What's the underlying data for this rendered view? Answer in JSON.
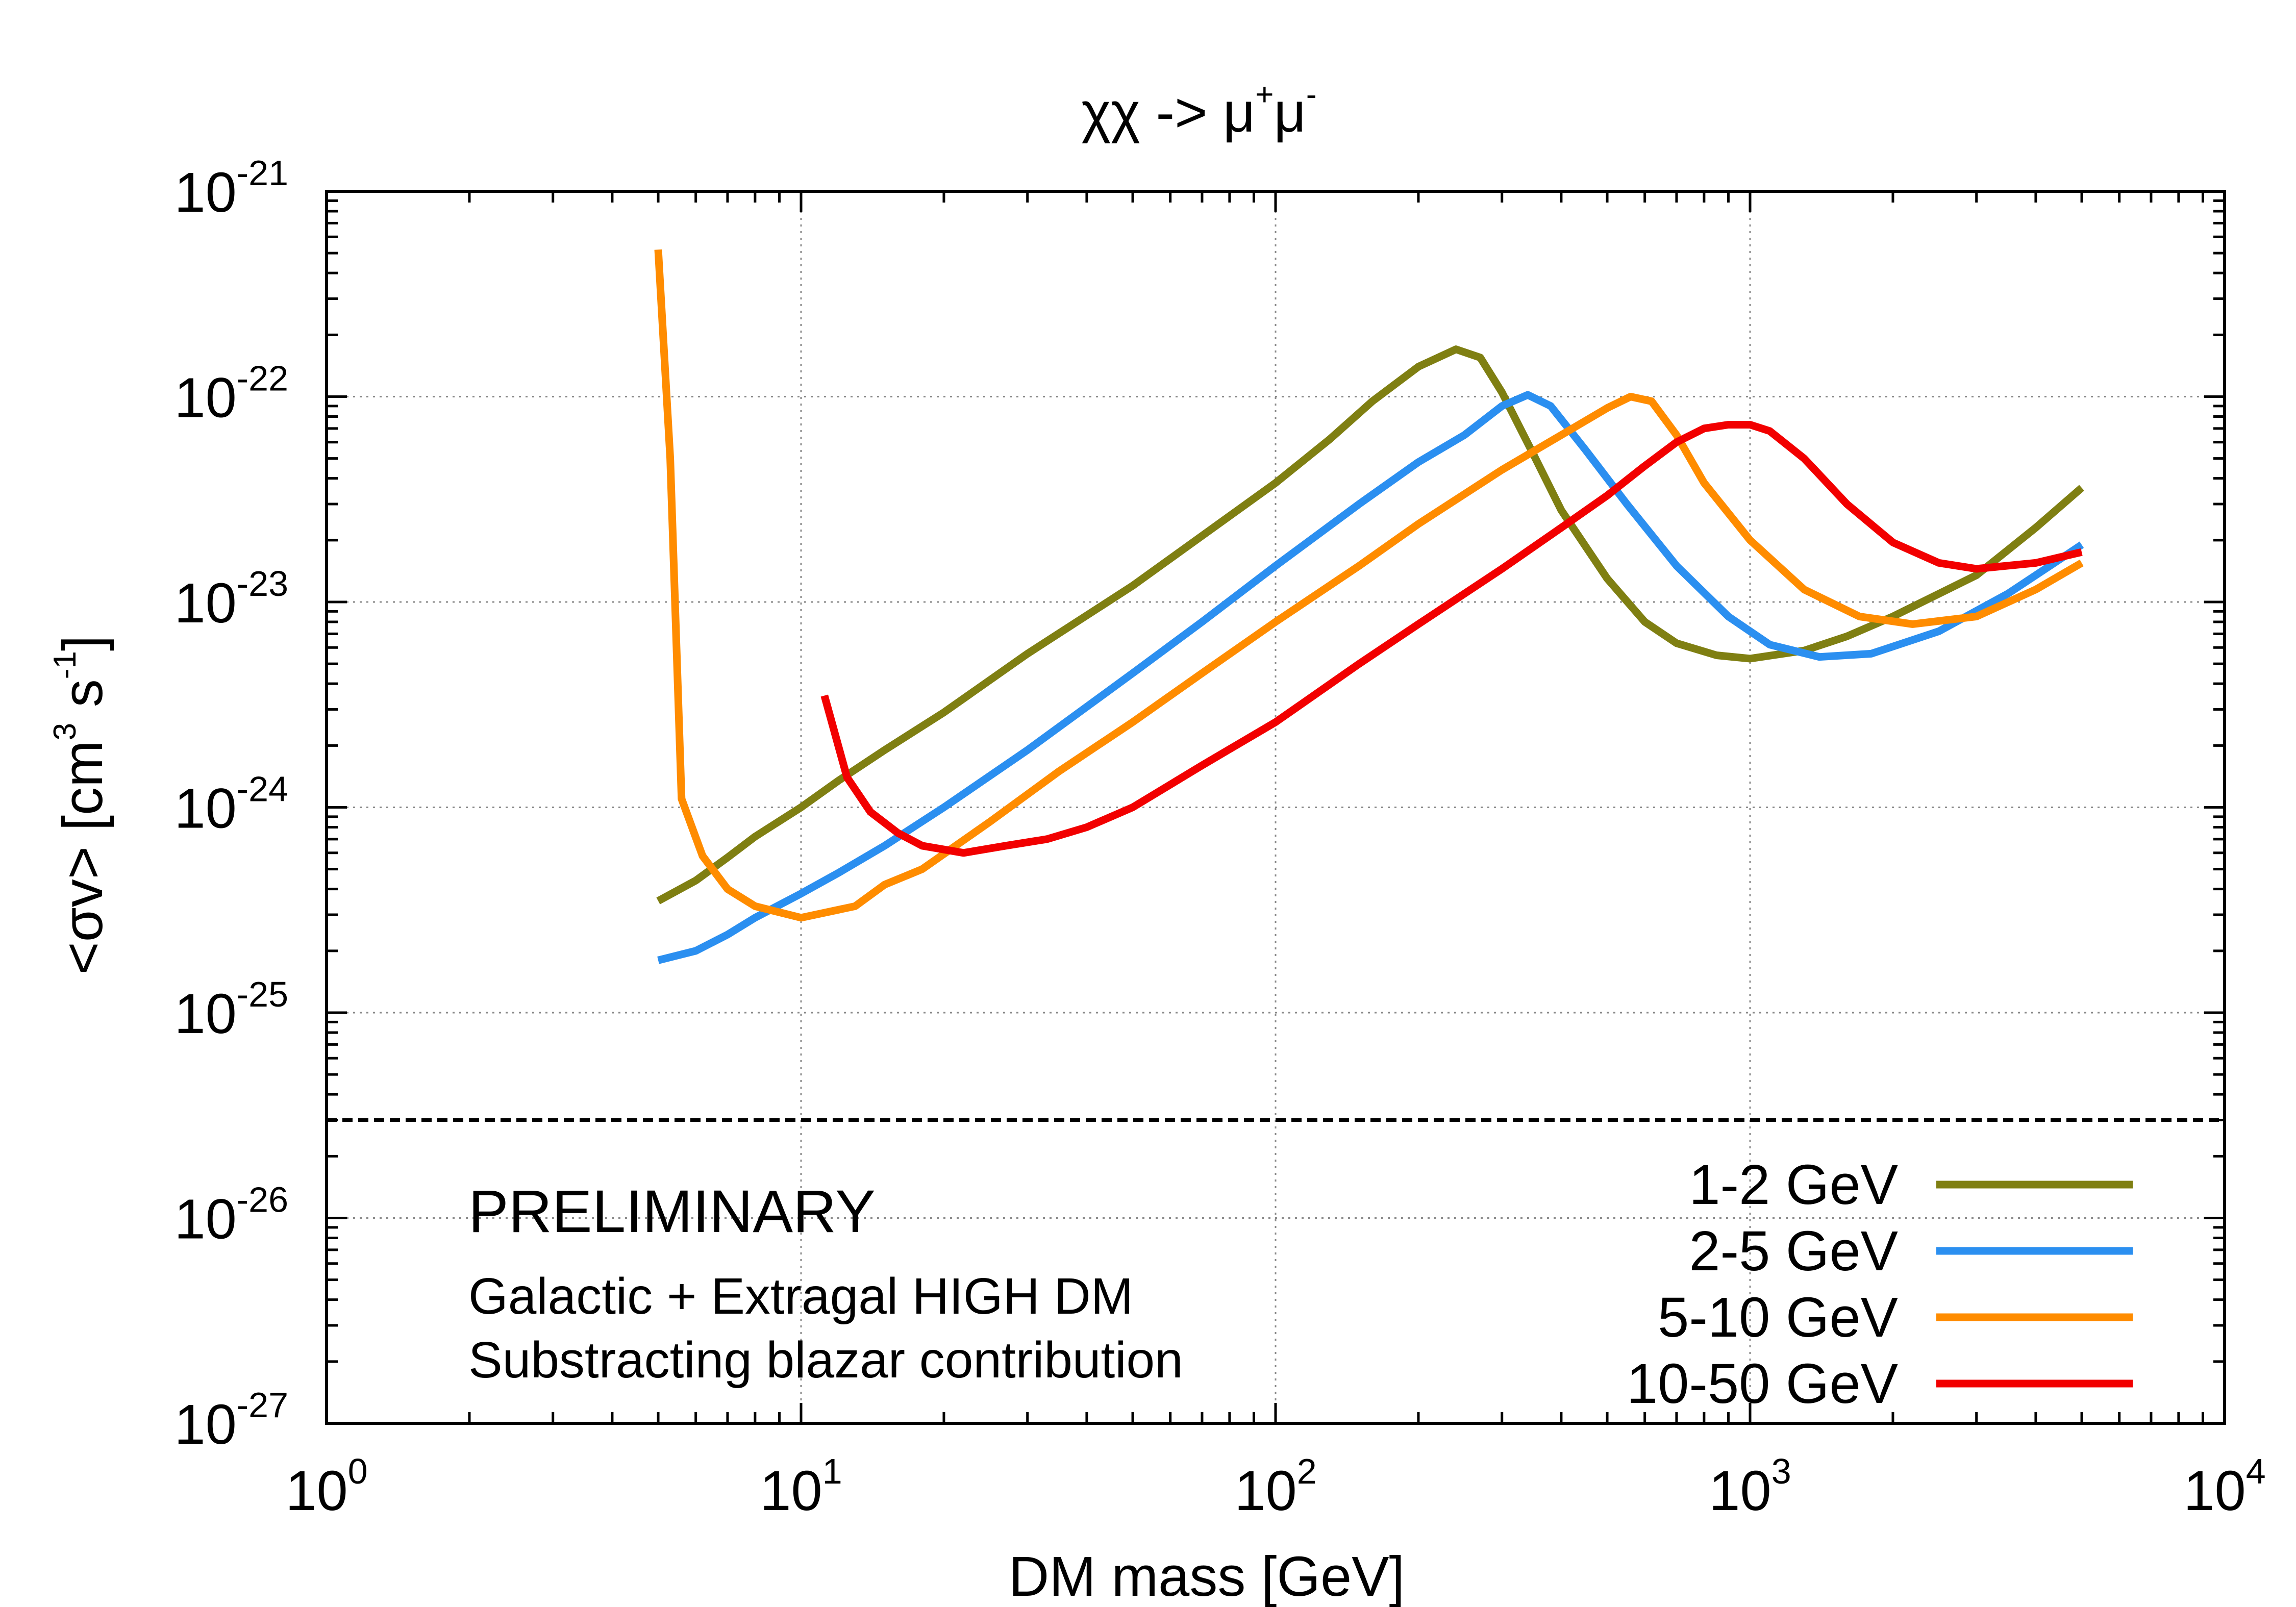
{
  "colors": {
    "series_1_2": "#7f7f12",
    "series_2_5": "#2b8ff0",
    "series_5_10": "#ff8c00",
    "series_10_50": "#f20000",
    "preliminary": "#f20000",
    "axis": "#000000",
    "grid": "#8a8a8a"
  },
  "chart_data": {
    "type": "line",
    "title": {
      "prefix": "χχ -> μ",
      "sup1": "+",
      "mid": "μ",
      "sup2": "-"
    },
    "xlabel": "DM mass [GeV]",
    "ylabel": {
      "prefix": "<σv> [cm",
      "sup1": "3",
      "mid": " s",
      "sup2": "-1",
      "suffix": "]"
    },
    "xscale": "log",
    "yscale": "log",
    "xlim": [
      1,
      10000
    ],
    "ylim": [
      1e-27,
      1e-21
    ],
    "grid": true,
    "x_ticks": [
      {
        "value": 1,
        "base": "10",
        "exp": "0"
      },
      {
        "value": 10,
        "base": "10",
        "exp": "1"
      },
      {
        "value": 100,
        "base": "10",
        "exp": "2"
      },
      {
        "value": 1000,
        "base": "10",
        "exp": "3"
      },
      {
        "value": 10000,
        "base": "10",
        "exp": "4"
      }
    ],
    "y_ticks": [
      {
        "value": 1e-21,
        "base": "10",
        "exp": "-21"
      },
      {
        "value": 1e-22,
        "base": "10",
        "exp": "-22"
      },
      {
        "value": 1e-23,
        "base": "10",
        "exp": "-23"
      },
      {
        "value": 1e-24,
        "base": "10",
        "exp": "-24"
      },
      {
        "value": 1e-25,
        "base": "10",
        "exp": "-25"
      },
      {
        "value": 1e-26,
        "base": "10",
        "exp": "-26"
      },
      {
        "value": 1e-27,
        "base": "10",
        "exp": "-27"
      }
    ],
    "reference_line": {
      "y": 3e-26,
      "style": "dashed"
    },
    "legend_position": "bottom-right",
    "series": [
      {
        "name": "1-2 GeV",
        "color_key": "series_1_2",
        "points": [
          [
            5,
            3.5e-25
          ],
          [
            6,
            4.4e-25
          ],
          [
            7,
            5.7e-25
          ],
          [
            8,
            7.2e-25
          ],
          [
            10,
            1e-24
          ],
          [
            12,
            1.35e-24
          ],
          [
            15,
            1.9e-24
          ],
          [
            20,
            2.9e-24
          ],
          [
            30,
            5.6e-24
          ],
          [
            50,
            1.2e-23
          ],
          [
            70,
            2.1e-23
          ],
          [
            100,
            3.8e-23
          ],
          [
            130,
            6.2e-23
          ],
          [
            160,
            9.5e-23
          ],
          [
            200,
            1.4e-22
          ],
          [
            240,
            1.7e-22
          ],
          [
            270,
            1.55e-22
          ],
          [
            300,
            1.05e-22
          ],
          [
            350,
            5.2e-23
          ],
          [
            400,
            2.8e-23
          ],
          [
            500,
            1.3e-23
          ],
          [
            600,
            8e-24
          ],
          [
            700,
            6.3e-24
          ],
          [
            850,
            5.5e-24
          ],
          [
            1000,
            5.3e-24
          ],
          [
            1300,
            5.8e-24
          ],
          [
            1600,
            6.8e-24
          ],
          [
            2000,
            8.5e-24
          ],
          [
            3000,
            1.35e-23
          ],
          [
            4000,
            2.3e-23
          ],
          [
            5000,
            3.6e-23
          ]
        ]
      },
      {
        "name": "2-5 GeV",
        "color_key": "series_2_5",
        "points": [
          [
            5,
            1.8e-25
          ],
          [
            6,
            2e-25
          ],
          [
            7,
            2.4e-25
          ],
          [
            8,
            2.9e-25
          ],
          [
            10,
            3.8e-25
          ],
          [
            12,
            4.8e-25
          ],
          [
            15,
            6.5e-25
          ],
          [
            20,
            1e-24
          ],
          [
            30,
            1.9e-24
          ],
          [
            50,
            4.5e-24
          ],
          [
            70,
            8e-24
          ],
          [
            100,
            1.5e-23
          ],
          [
            150,
            3e-23
          ],
          [
            200,
            4.8e-23
          ],
          [
            250,
            6.5e-23
          ],
          [
            300,
            9e-23
          ],
          [
            340,
            1.02e-22
          ],
          [
            380,
            9e-23
          ],
          [
            450,
            5.5e-23
          ],
          [
            550,
            3e-23
          ],
          [
            700,
            1.5e-23
          ],
          [
            900,
            8.5e-24
          ],
          [
            1100,
            6.2e-24
          ],
          [
            1400,
            5.4e-24
          ],
          [
            1800,
            5.6e-24
          ],
          [
            2500,
            7.2e-24
          ],
          [
            3500,
            1.1e-23
          ],
          [
            5000,
            1.9e-23
          ]
        ]
      },
      {
        "name": "5-10 GeV",
        "color_key": "series_5_10",
        "points": [
          [
            5,
            5.2e-22
          ],
          [
            5.3,
            5e-23
          ],
          [
            5.6,
            1.1e-24
          ],
          [
            6.2,
            5.8e-25
          ],
          [
            7,
            4e-25
          ],
          [
            8,
            3.3e-25
          ],
          [
            10,
            2.9e-25
          ],
          [
            13,
            3.3e-25
          ],
          [
            15,
            4.2e-25
          ],
          [
            18,
            5e-25
          ],
          [
            25,
            8.5e-25
          ],
          [
            35,
            1.5e-24
          ],
          [
            50,
            2.6e-24
          ],
          [
            70,
            4.5e-24
          ],
          [
            100,
            8e-24
          ],
          [
            150,
            1.5e-23
          ],
          [
            200,
            2.4e-23
          ],
          [
            300,
            4.4e-23
          ],
          [
            400,
            6.5e-23
          ],
          [
            500,
            8.8e-23
          ],
          [
            560,
            1e-22
          ],
          [
            620,
            9.5e-23
          ],
          [
            700,
            6.5e-23
          ],
          [
            800,
            3.8e-23
          ],
          [
            1000,
            2e-23
          ],
          [
            1300,
            1.15e-23
          ],
          [
            1700,
            8.5e-24
          ],
          [
            2200,
            7.8e-24
          ],
          [
            3000,
            8.5e-24
          ],
          [
            4000,
            1.15e-23
          ],
          [
            5000,
            1.55e-23
          ]
        ]
      },
      {
        "name": "10-50 GeV",
        "color_key": "series_10_50",
        "points": [
          [
            11.2,
            3.5e-24
          ],
          [
            12.5,
            1.4e-24
          ],
          [
            14,
            9.5e-25
          ],
          [
            16,
            7.5e-25
          ],
          [
            18,
            6.5e-25
          ],
          [
            22,
            6e-25
          ],
          [
            27,
            6.5e-25
          ],
          [
            33,
            7e-25
          ],
          [
            40,
            8e-25
          ],
          [
            50,
            1e-24
          ],
          [
            70,
            1.6e-24
          ],
          [
            100,
            2.6e-24
          ],
          [
            150,
            5e-24
          ],
          [
            200,
            7.8e-24
          ],
          [
            300,
            1.45e-23
          ],
          [
            400,
            2.3e-23
          ],
          [
            500,
            3.3e-23
          ],
          [
            600,
            4.6e-23
          ],
          [
            700,
            6e-23
          ],
          [
            800,
            7e-23
          ],
          [
            900,
            7.3e-23
          ],
          [
            1000,
            7.3e-23
          ],
          [
            1100,
            6.8e-23
          ],
          [
            1300,
            5e-23
          ],
          [
            1600,
            3e-23
          ],
          [
            2000,
            1.95e-23
          ],
          [
            2500,
            1.55e-23
          ],
          [
            3000,
            1.45e-23
          ],
          [
            4000,
            1.55e-23
          ],
          [
            5000,
            1.75e-23
          ]
        ]
      }
    ],
    "annotations": {
      "preliminary": "PRELIMINARY",
      "line1": "Galactic + Extragal HIGH DM",
      "line2": "Substracting blazar contribution"
    }
  }
}
